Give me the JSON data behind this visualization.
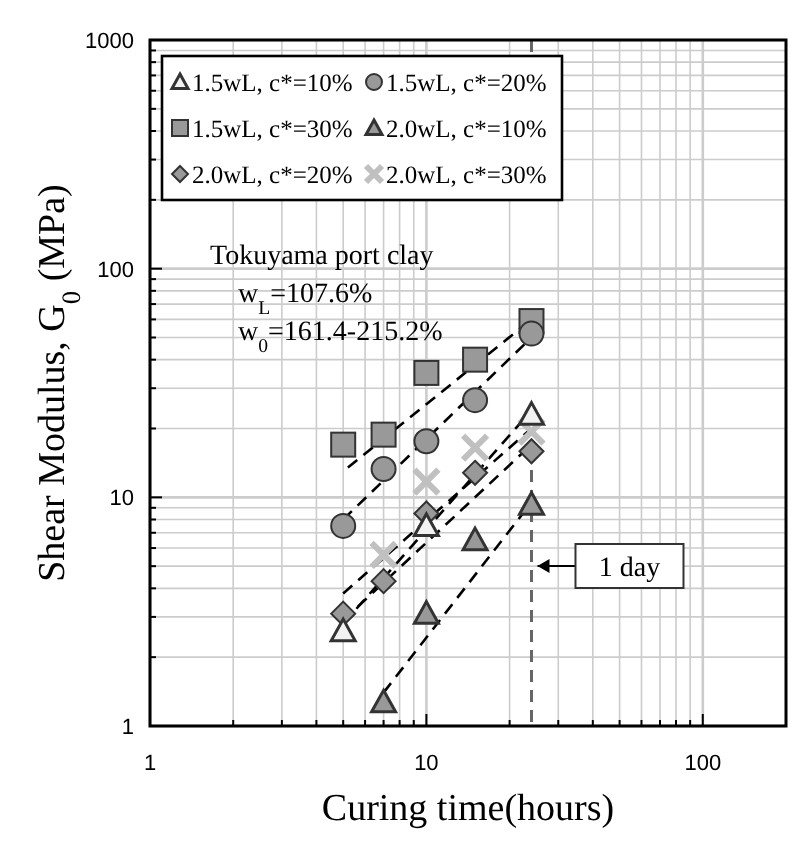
{
  "chart_data": {
    "type": "scatter",
    "xlabel": "Curing time(hours)",
    "ylabel": "Shear Modulus, G$_{0}$ (MPa)",
    "log": "xy",
    "grid": true,
    "legend": "top left",
    "xlim": [
      1,
      200
    ],
    "ylim": [
      1,
      1000
    ],
    "xticks": [
      1,
      {
        "value": 2,
        "label": null
      },
      {
        "value": 3,
        "label": null
      },
      {
        "value": 4,
        "label": null
      },
      {
        "value": 5,
        "label": null
      },
      {
        "value": 6,
        "label": null
      },
      {
        "value": 7,
        "label": null
      },
      {
        "value": 8,
        "label": null
      },
      {
        "value": 9,
        "label": null
      },
      10,
      {
        "value": 20,
        "label": null
      },
      {
        "value": 30,
        "label": null
      },
      {
        "value": 40,
        "label": null
      },
      {
        "value": 50,
        "label": null
      },
      {
        "value": 60,
        "label": null
      },
      {
        "value": 70,
        "label": null
      },
      {
        "value": 80,
        "label": null
      },
      {
        "value": 90,
        "label": null
      },
      100
    ],
    "yticks": [
      1,
      {
        "value": 2,
        "label": null
      },
      {
        "value": 3,
        "label": null
      },
      {
        "value": 4,
        "label": null
      },
      {
        "value": 5,
        "label": null
      },
      {
        "value": 6,
        "label": null
      },
      {
        "value": 7,
        "label": null
      },
      {
        "value": 8,
        "label": null
      },
      {
        "value": 9,
        "label": null
      },
      10,
      {
        "value": 20,
        "label": null
      },
      {
        "value": 30,
        "label": null
      },
      {
        "value": 40,
        "label": null
      },
      {
        "value": 50,
        "label": null
      },
      {
        "value": 60,
        "label": null
      },
      {
        "value": 70,
        "label": null
      },
      {
        "value": 80,
        "label": null
      },
      {
        "value": 90,
        "label": null
      },
      100,
      {
        "value": 200,
        "label": null
      },
      {
        "value": 300,
        "label": null
      },
      {
        "value": 400,
        "label": null
      },
      {
        "value": 500,
        "label": null
      },
      {
        "value": 600,
        "label": null
      },
      {
        "value": 700,
        "label": null
      },
      {
        "value": 800,
        "label": null
      },
      {
        "value": 900,
        "label": null
      },
      1000
    ],
    "series": [
      {
        "name": "1.5wL, c*=10%",
        "color": "#f2f2f2",
        "marker": "triangle",
        "x": [
          5,
          10,
          24
        ],
        "values": [
          2.6,
          7.5,
          23
        ]
      },
      {
        "name": "1.5wL, c*=20%",
        "color": "#999999",
        "marker": "circle",
        "x": [
          5,
          7,
          10,
          15,
          24
        ],
        "values": [
          7.5,
          13.3,
          17.6,
          26.6,
          52
        ]
      },
      {
        "name": "1.5wL, c*=30%",
        "color": "#999999",
        "marker": "square",
        "x": [
          5,
          7,
          10,
          15,
          24
        ],
        "values": [
          17,
          18.8,
          35,
          40,
          59
        ]
      },
      {
        "name": "2.0wL, c*=10%",
        "color": "#999999",
        "marker": "triangle",
        "x": [
          7,
          10,
          15,
          24
        ],
        "values": [
          1.27,
          3.1,
          6.5,
          9.3
        ]
      },
      {
        "name": "2.0wL, c*=20%",
        "color": "#999999",
        "marker": "diamond",
        "x": [
          5,
          7,
          10,
          15,
          24
        ],
        "values": [
          3.1,
          4.3,
          8.5,
          12.8,
          15.9
        ]
      },
      {
        "name": "2.0wL, c*=30%",
        "color": "#c0c0c0",
        "marker": "cross",
        "x": [
          7,
          10,
          15,
          24
        ],
        "values": [
          5.6,
          11.7,
          16.5,
          19.4
        ]
      },
      {
        "type": "line",
        "color": "#000000",
        "line_style": "dashed",
        "marker": "none",
        "x": [
          5.2,
          24
        ],
        "values": [
          13.5,
          60
        ]
      },
      {
        "type": "line",
        "color": "#000000",
        "line_style": "dashed",
        "marker": "none",
        "x": [
          5,
          24
        ],
        "values": [
          8,
          50
        ]
      },
      {
        "type": "line",
        "color": "#000000",
        "line_style": "dashed",
        "marker": "none",
        "x": [
          5,
          24
        ],
        "values": [
          2.8,
          24
        ]
      },
      {
        "type": "line",
        "color": "#000000",
        "line_style": "dashed",
        "marker": "none",
        "x": [
          5,
          24
        ],
        "values": [
          2.9,
          17
        ]
      },
      {
        "type": "line",
        "color": "#000000",
        "line_style": "dashed",
        "marker": "none",
        "x": [
          5,
          24
        ],
        "values": [
          3.8,
          20
        ]
      },
      {
        "type": "line",
        "color": "#000000",
        "line_style": "dashed",
        "marker": "none",
        "x": [
          7,
          24
        ],
        "values": [
          1.4,
          9.5
        ]
      }
    ],
    "ref_lines": [
      {
        "axis": "x",
        "value": 24,
        "label": "1 day",
        "color": "#666666",
        "line_style": "dashed"
      }
    ],
    "annotations": [
      "Tokuyama port clay",
      "w$_{L}$=107.6%",
      "w$_{0}$=161.4-215.2%"
    ]
  }
}
